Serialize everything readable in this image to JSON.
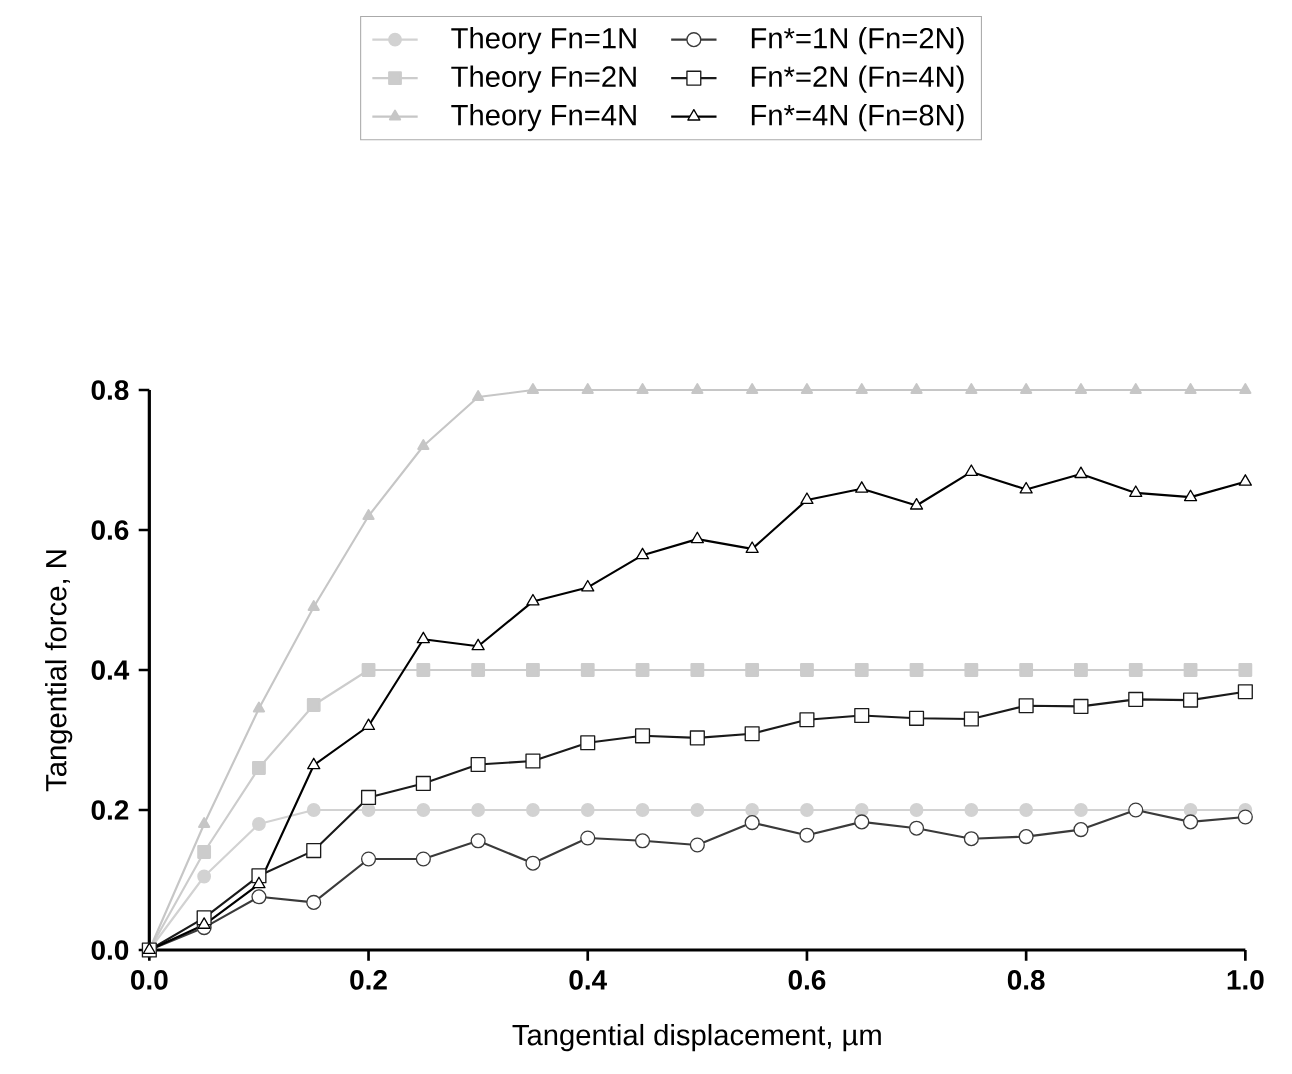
{
  "chart_data": {
    "type": "line",
    "xlabel": "Tangential displacement, µm",
    "ylabel": "Tangential force, N",
    "x": [
      0,
      0.05,
      0.1,
      0.15,
      0.2,
      0.25,
      0.3,
      0.35,
      0.4,
      0.45,
      0.5,
      0.55,
      0.6,
      0.65,
      0.7,
      0.75,
      0.8,
      0.85,
      0.9,
      0.95,
      1.0
    ],
    "series": [
      {
        "name": "Theory Fn=1N",
        "color": "#d2d2d2",
        "marker": "circle",
        "values": [
          0,
          0.105,
          0.18,
          0.2,
          0.2,
          0.2,
          0.2,
          0.2,
          0.2,
          0.2,
          0.2,
          0.2,
          0.2,
          0.2,
          0.2,
          0.2,
          0.2,
          0.2,
          0.2,
          0.2,
          0.2
        ]
      },
      {
        "name": "Theory Fn=2N",
        "color": "#cccccc",
        "marker": "square",
        "values": [
          0,
          0.14,
          0.26,
          0.35,
          0.4,
          0.4,
          0.4,
          0.4,
          0.4,
          0.4,
          0.4,
          0.4,
          0.4,
          0.4,
          0.4,
          0.4,
          0.4,
          0.4,
          0.4,
          0.4,
          0.4
        ]
      },
      {
        "name": "Theory Fn=4N",
        "color": "#c6c6c6",
        "marker": "triangle",
        "values": [
          0,
          0.18,
          0.345,
          0.49,
          0.62,
          0.72,
          0.79,
          0.8,
          0.8,
          0.8,
          0.8,
          0.8,
          0.8,
          0.8,
          0.8,
          0.8,
          0.8,
          0.8,
          0.8,
          0.8,
          0.8
        ]
      },
      {
        "name": "Fn*=1N (Fn=2N)",
        "color": "#3a3a3a",
        "marker": "circle",
        "values": [
          0,
          0.032,
          0.076,
          0.068,
          0.13,
          0.13,
          0.156,
          0.124,
          0.16,
          0.156,
          0.15,
          0.182,
          0.164,
          0.183,
          0.174,
          0.159,
          0.162,
          0.172,
          0.2,
          0.183,
          0.19
        ]
      },
      {
        "name": "Fn*=2N (Fn=4N)",
        "color": "#1a1a1a",
        "marker": "square",
        "values": [
          0,
          0.046,
          0.106,
          0.142,
          0.218,
          0.238,
          0.265,
          0.27,
          0.296,
          0.306,
          0.303,
          0.309,
          0.329,
          0.335,
          0.331,
          0.33,
          0.349,
          0.348,
          0.358,
          0.357,
          0.369
        ]
      },
      {
        "name": "Fn*=4N (Fn=8N)",
        "color": "#000000",
        "marker": "triangle",
        "values": [
          0,
          0.036,
          0.094,
          0.264,
          0.32,
          0.444,
          0.434,
          0.498,
          0.518,
          0.564,
          0.587,
          0.573,
          0.643,
          0.659,
          0.635,
          0.683,
          0.658,
          0.68,
          0.653,
          0.647,
          0.669
        ]
      }
    ],
    "xlim": [
      0,
      1
    ],
    "ylim": [
      0,
      0.8
    ],
    "xticks": [
      {
        "value": 0,
        "label": "0.0"
      },
      0.2,
      0.4,
      0.6,
      0.8,
      {
        "value": 1,
        "label": "1.0"
      }
    ],
    "yticks": [
      {
        "value": 0,
        "label": "0.0"
      },
      0.2,
      0.4,
      0.6,
      0.8
    ],
    "legend": "top",
    "grid": false,
    "line_style": "solid"
  }
}
